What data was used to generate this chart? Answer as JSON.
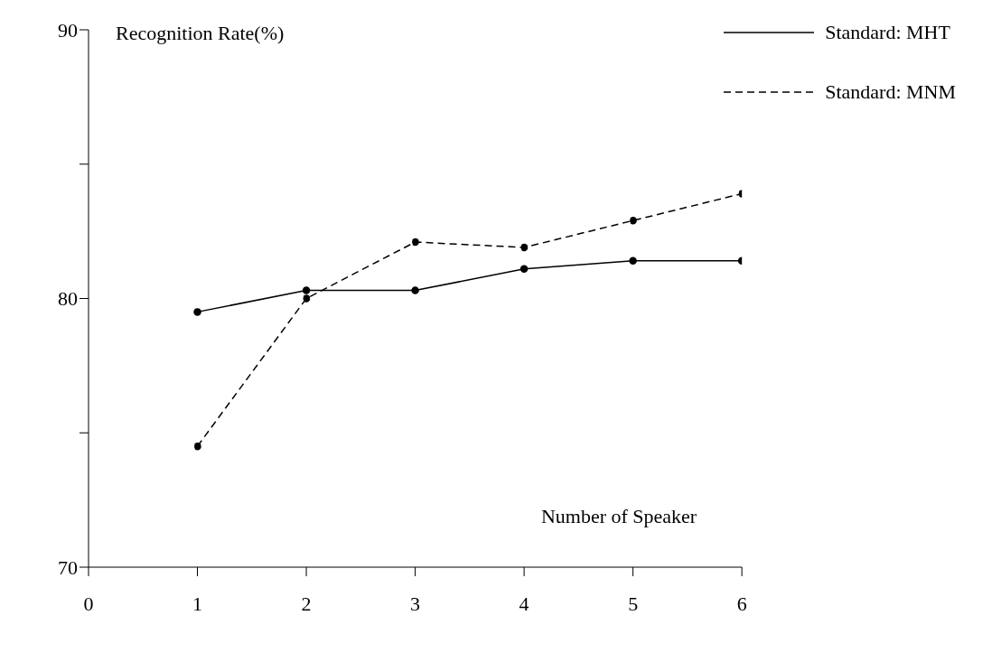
{
  "chart_data": {
    "type": "line",
    "xlabel": "Number of Speaker",
    "ylabel": "Recognition Rate(%)",
    "x": [
      1,
      2,
      3,
      4,
      5,
      6
    ],
    "series": [
      {
        "name": "Standard: MHT",
        "color": "#000000",
        "line_style": "solid",
        "values": [
          79.5,
          80.3,
          80.3,
          81.1,
          81.4,
          81.4
        ]
      },
      {
        "name": "Standard: MNM",
        "color": "#000000",
        "line_style": "dashed",
        "values": [
          74.5,
          80.0,
          82.1,
          81.9,
          82.9,
          83.9
        ]
      }
    ],
    "xlim": [
      0,
      6
    ],
    "xticks": [
      0,
      1,
      2,
      3,
      4,
      5,
      6
    ],
    "ylim": [
      70,
      90
    ],
    "yticks": [
      70,
      {
        "value": 75,
        "label": null
      },
      80,
      {
        "value": 85,
        "label": null
      },
      90
    ],
    "grid": false,
    "legend": "top right",
    "marker": "circle"
  }
}
